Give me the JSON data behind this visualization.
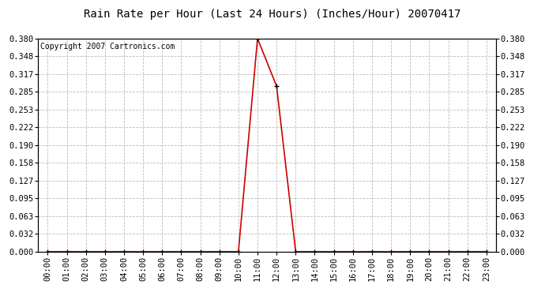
{
  "title": "Rain Rate per Hour (Last 24 Hours) (Inches/Hour) 20070417",
  "copyright": "Copyright 2007 Cartronics.com",
  "hours": [
    0,
    1,
    2,
    3,
    4,
    5,
    6,
    7,
    8,
    9,
    10,
    11,
    12,
    13,
    14,
    15,
    16,
    17,
    18,
    19,
    20,
    21,
    22,
    23
  ],
  "values": [
    0,
    0,
    0,
    0,
    0,
    0,
    0,
    0,
    0,
    0,
    0,
    0.38,
    0.295,
    0,
    0,
    0,
    0,
    0,
    0,
    0,
    0,
    0,
    0,
    0
  ],
  "line_color": "#cc0000",
  "marker_color": "#000000",
  "background_color": "#ffffff",
  "plot_bg_color": "#ffffff",
  "grid_color": "#bbbbbb",
  "yticks": [
    0.0,
    0.032,
    0.063,
    0.095,
    0.127,
    0.158,
    0.19,
    0.222,
    0.253,
    0.285,
    0.317,
    0.348,
    0.38
  ],
  "ymax": 0.38,
  "ymin": 0.0,
  "title_fontsize": 10,
  "copyright_fontsize": 7,
  "tick_fontsize": 7.5
}
